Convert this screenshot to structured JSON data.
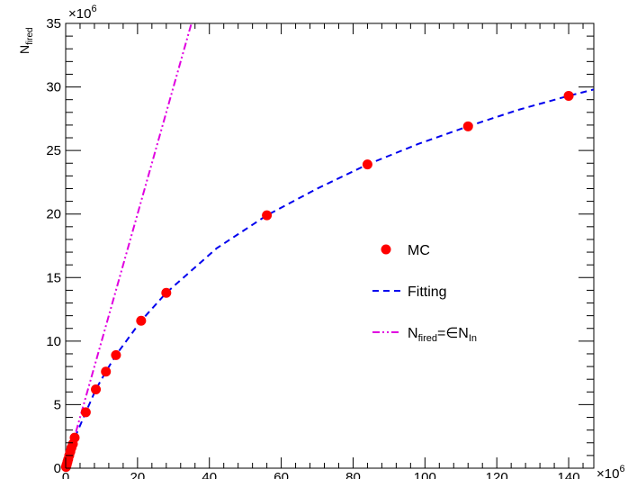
{
  "chart_data": {
    "type": "scatter",
    "title": "",
    "ylabel": {
      "main": "N",
      "sub": "fired"
    },
    "xlabel": "",
    "x_multiplier": "×10",
    "x_multiplier_exp": "6",
    "y_multiplier": "×10",
    "y_multiplier_exp": "6",
    "xlim": [
      0,
      147
    ],
    "ylim": [
      0,
      35
    ],
    "x_ticks": [
      0,
      20,
      40,
      60,
      80,
      100,
      120,
      140
    ],
    "x_tick_labels": [
      "0",
      "20",
      "40",
      "60",
      "80",
      "100",
      "120",
      "140"
    ],
    "y_ticks": [
      0,
      5,
      10,
      15,
      20,
      25,
      30,
      35
    ],
    "y_tick_labels": [
      "0",
      "5",
      "10",
      "15",
      "20",
      "25",
      "30",
      "35"
    ],
    "grid": false,
    "legend_position": "center-right",
    "series": [
      {
        "name": "MC",
        "kind": "markers",
        "color": "#ff0000",
        "points": [
          [
            0.1,
            0.1
          ],
          [
            0.2,
            0.2
          ],
          [
            0.3,
            0.3
          ],
          [
            0.5,
            0.5
          ],
          [
            0.7,
            0.7
          ],
          [
            1.0,
            1.0
          ],
          [
            1.3,
            1.3
          ],
          [
            1.6,
            1.6
          ],
          [
            2.0,
            1.9
          ],
          [
            2.5,
            2.4
          ],
          [
            5.6,
            4.4
          ],
          [
            8.4,
            6.2
          ],
          [
            11.2,
            7.6
          ],
          [
            14.0,
            8.9
          ],
          [
            21.0,
            11.6
          ],
          [
            28.0,
            13.8
          ],
          [
            56.0,
            19.9
          ],
          [
            84.0,
            23.9
          ],
          [
            112.0,
            26.9
          ],
          [
            140.0,
            29.3
          ]
        ]
      },
      {
        "name": "Fitting",
        "kind": "dashed-line",
        "color": "#0000ee",
        "points": [
          [
            0,
            0
          ],
          [
            0.5,
            0.5
          ],
          [
            1,
            1.0
          ],
          [
            2,
            1.9
          ],
          [
            3,
            2.7
          ],
          [
            5.6,
            4.4
          ],
          [
            8.4,
            6.2
          ],
          [
            11.2,
            7.6
          ],
          [
            14,
            8.9
          ],
          [
            21,
            11.6
          ],
          [
            28,
            13.8
          ],
          [
            42,
            17.3
          ],
          [
            56,
            19.9
          ],
          [
            70,
            22.0
          ],
          [
            84,
            23.9
          ],
          [
            98,
            25.5
          ],
          [
            112,
            26.9
          ],
          [
            126,
            28.2
          ],
          [
            140,
            29.3
          ],
          [
            147,
            29.8
          ]
        ]
      },
      {
        "name_parts": [
          "N",
          "fired",
          "=∈N",
          "In"
        ],
        "kind": "dash-dot-line",
        "color": "#e000e0",
        "points": [
          [
            0,
            0
          ],
          [
            35,
            35
          ]
        ]
      }
    ]
  }
}
